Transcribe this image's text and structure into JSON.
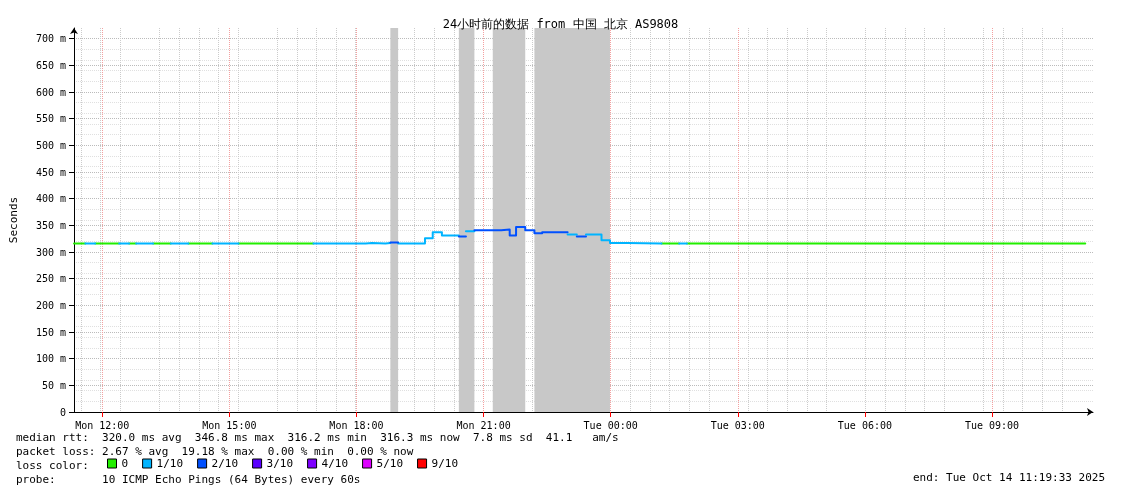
{
  "chart_data": {
    "type": "line",
    "title": "24小时前的数据 from 中国 北京 AS9808",
    "ylabel": "Seconds",
    "legend_title": "loss color:",
    "legend": "bottom left",
    "grid": true,
    "marker": "none",
    "line_style": "solid",
    "xlim": [
      "2025-10-13T11:20",
      "2025-10-14T11:23"
    ],
    "ylim": [
      0,
      720
    ],
    "xticks": [
      {
        "value": "2025-10-13T12:00",
        "label": "Mon 12:00"
      },
      {
        "value": "2025-10-13T15:00",
        "label": "Mon 15:00"
      },
      {
        "value": "2025-10-13T18:00",
        "label": "Mon 18:00"
      },
      {
        "value": "2025-10-13T21:00",
        "label": "Mon 21:00"
      },
      {
        "value": "2025-10-14T00:00",
        "label": "Tue 00:00"
      },
      {
        "value": "2025-10-14T03:00",
        "label": "Tue 03:00"
      },
      {
        "value": "2025-10-14T06:00",
        "label": "Tue 06:00"
      },
      {
        "value": "2025-10-14T09:00",
        "label": "Tue 09:00"
      }
    ],
    "yticks": [
      0,
      {
        "value": 50,
        "label": "50 m"
      },
      {
        "value": 100,
        "label": "100 m"
      },
      {
        "value": 150,
        "label": "150 m"
      },
      {
        "value": 200,
        "label": "200 m"
      },
      {
        "value": 250,
        "label": "250 m"
      },
      {
        "value": 300,
        "label": "300 m"
      },
      {
        "value": 350,
        "label": "350 m"
      },
      {
        "value": 400,
        "label": "400 m"
      },
      {
        "value": 450,
        "label": "450 m"
      },
      {
        "value": 500,
        "label": "500 m"
      },
      {
        "value": 550,
        "label": "550 m"
      },
      {
        "value": 600,
        "label": "600 m"
      },
      {
        "value": 650,
        "label": "650 m"
      },
      {
        "value": 700,
        "label": "700 m"
      }
    ],
    "series": [
      {
        "name": "0",
        "color": "#22ee00",
        "x": [
          "2025-10-13T11:20",
          "2025-10-13T11:36"
        ],
        "values": [
          316,
          316
        ]
      },
      {
        "color": "#22ee00",
        "x": [
          "2025-10-13T11:50",
          "2025-10-13T12:24"
        ],
        "values": [
          316,
          316
        ]
      },
      {
        "color": "#22ee00",
        "x": [
          "2025-10-13T12:38",
          "2025-10-13T12:48"
        ],
        "values": [
          316,
          316
        ]
      },
      {
        "color": "#22ee00",
        "x": [
          "2025-10-13T13:12",
          "2025-10-13T13:37"
        ],
        "values": [
          316,
          316
        ]
      },
      {
        "color": "#22ee00",
        "x": [
          "2025-10-13T14:02",
          "2025-10-13T14:36"
        ],
        "values": [
          316,
          316
        ]
      },
      {
        "color": "#22ee00",
        "x": [
          "2025-10-13T15:13",
          "2025-10-13T16:59"
        ],
        "values": [
          316,
          316
        ]
      },
      {
        "color": "#22ee00",
        "x": [
          "2025-10-14T01:12",
          "2025-10-14T01:37"
        ],
        "values": [
          316,
          316
        ]
      },
      {
        "color": "#22ee00",
        "x": [
          "2025-10-14T01:48",
          "2025-10-14T11:12"
        ],
        "values": [
          316,
          316
        ]
      },
      {
        "name": "1/10",
        "color": "#00b4ff",
        "x": [
          "2025-10-13T11:36",
          "2025-10-13T11:50"
        ],
        "values": [
          316,
          316
        ]
      },
      {
        "color": "#00b4ff",
        "x": [
          "2025-10-13T12:24",
          "2025-10-13T12:38"
        ],
        "values": [
          316,
          316
        ]
      },
      {
        "color": "#00b4ff",
        "x": [
          "2025-10-13T12:48",
          "2025-10-13T13:12"
        ],
        "values": [
          316,
          316
        ]
      },
      {
        "color": "#00b4ff",
        "x": [
          "2025-10-13T13:37",
          "2025-10-13T14:02"
        ],
        "values": [
          316,
          316
        ]
      },
      {
        "color": "#00b4ff",
        "x": [
          "2025-10-13T14:36",
          "2025-10-13T15:13"
        ],
        "values": [
          316,
          316
        ]
      },
      {
        "color": "#00b4ff",
        "x": [
          "2025-10-13T16:59",
          "2025-10-13T18:13",
          "2025-10-13T18:13",
          "2025-10-13T18:22",
          "2025-10-13T18:22",
          "2025-10-13T18:41",
          "2025-10-13T18:41",
          "2025-10-13T18:48"
        ],
        "values": [
          316,
          316,
          317,
          317,
          316,
          316,
          317,
          317
        ]
      },
      {
        "color": "#00b4ff",
        "x": [
          "2025-10-13T18:59",
          "2025-10-13T19:37",
          "2025-10-13T19:37",
          "2025-10-13T19:48",
          "2025-10-13T19:48",
          "2025-10-13T20:01",
          "2025-10-13T20:01",
          "2025-10-13T20:25"
        ],
        "values": [
          316,
          316,
          326,
          326,
          337,
          337,
          331,
          331
        ]
      },
      {
        "color": "#00b4ff",
        "x": [
          "2025-10-13T20:35",
          "2025-10-13T20:47"
        ],
        "values": [
          339,
          339
        ]
      },
      {
        "color": "#00b4ff",
        "x": [
          "2025-10-13T22:59",
          "2025-10-13T23:12"
        ],
        "values": [
          333,
          333
        ]
      },
      {
        "color": "#00b4ff",
        "x": [
          "2025-10-13T23:25",
          "2025-10-13T23:47",
          "2025-10-13T23:47",
          "2025-10-13T23:59",
          "2025-10-13T23:59",
          "2025-10-14T00:24",
          "2025-10-14T00:24",
          "2025-10-14T01:12"
        ],
        "values": [
          333,
          333,
          322,
          322,
          317,
          317,
          316,
          316
        ]
      },
      {
        "color": "#00b4ff",
        "x": [
          "2025-10-14T01:37",
          "2025-10-14T01:48"
        ],
        "values": [
          316,
          316
        ]
      },
      {
        "name": "2/10",
        "color": "#0050ff",
        "x": [
          "2025-10-13T18:48",
          "2025-10-13T18:59"
        ],
        "values": [
          318,
          318
        ]
      },
      {
        "color": "#0050ff",
        "x": [
          "2025-10-13T20:25",
          "2025-10-13T20:35"
        ],
        "values": [
          329,
          329
        ]
      },
      {
        "color": "#0050ff",
        "x": [
          "2025-10-13T20:47",
          "2025-10-13T21:25",
          "2025-10-13T21:25",
          "2025-10-13T21:37",
          "2025-10-13T21:37",
          "2025-10-13T21:46",
          "2025-10-13T21:46",
          "2025-10-13T21:59",
          "2025-10-13T21:59",
          "2025-10-13T22:12",
          "2025-10-13T22:12",
          "2025-10-13T22:23",
          "2025-10-13T22:23",
          "2025-10-13T22:59"
        ],
        "values": [
          341,
          341,
          342,
          342,
          331,
          331,
          347,
          347,
          341,
          341,
          335,
          335,
          337,
          337
        ]
      },
      {
        "color": "#0050ff",
        "x": [
          "2025-10-13T23:12",
          "2025-10-13T23:25"
        ],
        "values": [
          329,
          329
        ]
      },
      {
        "name": "3/10",
        "color": "#5a00ff"
      },
      {
        "name": "4/10",
        "color": "#7e00ff"
      },
      {
        "name": "5/10",
        "color": "#dd00ff"
      },
      {
        "name": "9/10",
        "color": "#ff0000"
      }
    ],
    "bands": [
      {
        "axis": "x",
        "from": "2025-10-13T18:48",
        "to": "2025-10-13T18:59",
        "color": "#c8c8c8"
      },
      {
        "axis": "x",
        "from": "2025-10-13T20:25",
        "to": "2025-10-13T20:47",
        "color": "#c8c8c8"
      },
      {
        "axis": "x",
        "from": "2025-10-13T21:13",
        "to": "2025-10-13T21:59",
        "color": "#c8c8c8"
      },
      {
        "axis": "x",
        "from": "2025-10-13T22:12",
        "to": "2025-10-13T23:59",
        "color": "#c8c8c8"
      }
    ],
    "annotations": [
      "median rtt:  320.0 ms avg  346.8 ms max  316.2 ms min  316.3 ms now  7.8 ms sd  41.1   am/s",
      "packet loss: 2.67 % avg  19.18 % max  0.00 % min  0.00 % now",
      "probe:       10 ICMP Echo Pings (64 Bytes) every 60s",
      "end: Tue Oct 14 11:19:33 2025"
    ]
  }
}
